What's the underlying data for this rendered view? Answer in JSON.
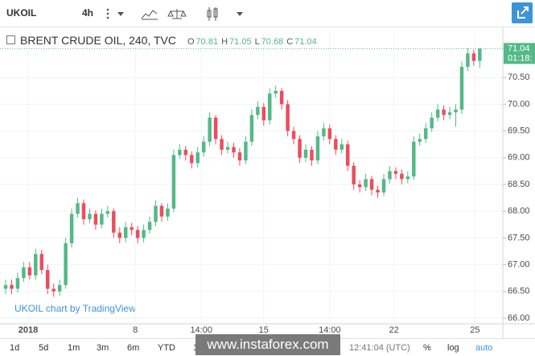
{
  "toolbar": {
    "symbol": "UKOIL",
    "interval": "4h"
  },
  "banner": "www.instaforex.com",
  "bottom_toolbar": {
    "ranges": [
      "1d",
      "5d",
      "1m",
      "3m",
      "6m",
      "YTD",
      "1y"
    ],
    "clock": "12:41:04 (UTC)",
    "options": [
      "%",
      "log",
      "auto"
    ]
  },
  "chart_data": {
    "type": "candlestick",
    "title": "BRENT CRUDE OIL, 240, TVC",
    "ohlc_labels": [
      {
        "label": "O",
        "value": 70.81
      },
      {
        "label": "H",
        "value": 71.05
      },
      {
        "label": "L",
        "value": 70.68
      },
      {
        "label": "C",
        "value": 71.04
      }
    ],
    "watermark": "UKOIL chart by TradingView",
    "up_color": "#53b987",
    "down_color": "#eb4d5c",
    "open": [
      66.55,
      66.62,
      66.55,
      66.75,
      66.95,
      66.8,
      67.2,
      66.9,
      66.55,
      66.5,
      66.62,
      67.4,
      67.95,
      68.15,
      67.85,
      67.95,
      67.75,
      67.95,
      68.0,
      67.6,
      67.5,
      67.7,
      67.65,
      67.5,
      67.65,
      67.8,
      68.1,
      67.9,
      68.05,
      69.05,
      69.15,
      69.05,
      68.9,
      69.1,
      69.3,
      69.75,
      69.35,
      69.15,
      69.2,
      69.1,
      68.95,
      69.3,
      69.8,
      69.95,
      69.7,
      70.2,
      70.25,
      70.0,
      69.5,
      69.35,
      69.0,
      69.15,
      68.95,
      69.4,
      69.55,
      69.35,
      69.15,
      69.25,
      68.85,
      68.5,
      68.45,
      68.6,
      68.4,
      68.35,
      68.6,
      68.75,
      68.7,
      68.6,
      68.65,
      69.3,
      69.35,
      69.55,
      69.75,
      69.9,
      69.8,
      69.85,
      69.9,
      70.7,
      70.95,
      70.81
    ],
    "high": [
      66.72,
      66.72,
      66.85,
      67.05,
      67.05,
      67.3,
      67.28,
      67.0,
      66.65,
      66.72,
      67.5,
      68.05,
      68.25,
      68.22,
      68.05,
      68.02,
      68.05,
      68.1,
      68.05,
      67.7,
      67.8,
      67.78,
      67.72,
      67.75,
      67.9,
      68.2,
      68.15,
      68.15,
      69.15,
      69.25,
      69.22,
      69.12,
      69.2,
      69.4,
      69.85,
      69.8,
      69.42,
      69.3,
      69.28,
      69.18,
      69.4,
      69.9,
      70.05,
      70.02,
      70.3,
      70.35,
      70.3,
      70.08,
      69.58,
      69.42,
      69.25,
      69.22,
      69.5,
      69.65,
      69.62,
      69.42,
      69.35,
      69.32,
      68.92,
      68.58,
      68.7,
      68.66,
      68.48,
      68.7,
      68.85,
      68.82,
      68.78,
      68.75,
      69.4,
      69.45,
      69.65,
      69.85,
      70.0,
      69.98,
      69.95,
      70.0,
      70.8,
      71.05,
      71.02,
      71.05
    ],
    "low": [
      66.45,
      66.45,
      66.48,
      66.68,
      66.72,
      66.72,
      66.82,
      66.45,
      66.4,
      66.42,
      66.55,
      67.32,
      67.88,
      67.75,
      67.78,
      67.65,
      67.68,
      67.88,
      67.5,
      67.4,
      67.42,
      67.55,
      67.4,
      67.42,
      67.58,
      67.72,
      67.8,
      67.82,
      67.98,
      68.98,
      68.95,
      68.8,
      68.82,
      69.02,
      69.22,
      69.25,
      69.05,
      69.08,
      69.0,
      68.85,
      68.88,
      69.22,
      69.72,
      69.6,
      69.62,
      70.12,
      69.9,
      69.4,
      69.25,
      68.9,
      68.92,
      68.85,
      68.88,
      69.32,
      69.25,
      69.05,
      69.08,
      68.75,
      68.4,
      68.35,
      68.38,
      68.3,
      68.25,
      68.28,
      68.52,
      68.6,
      68.5,
      68.52,
      68.58,
      69.22,
      69.28,
      69.48,
      69.68,
      69.7,
      69.72,
      69.58,
      69.82,
      70.62,
      70.72,
      70.68
    ],
    "close": [
      66.62,
      66.55,
      66.75,
      66.95,
      66.8,
      67.2,
      66.9,
      66.55,
      66.5,
      66.62,
      67.4,
      67.95,
      68.15,
      67.85,
      67.95,
      67.75,
      67.95,
      68.0,
      67.6,
      67.5,
      67.7,
      67.65,
      67.5,
      67.65,
      67.8,
      68.1,
      67.9,
      68.05,
      69.05,
      69.15,
      69.05,
      68.9,
      69.1,
      69.3,
      69.75,
      69.35,
      69.15,
      69.2,
      69.1,
      68.95,
      69.3,
      69.8,
      69.95,
      69.7,
      70.2,
      70.25,
      70.0,
      69.5,
      69.35,
      69.0,
      69.15,
      68.95,
      69.4,
      69.55,
      69.35,
      69.15,
      69.25,
      68.85,
      68.5,
      68.45,
      68.6,
      68.4,
      68.35,
      68.6,
      68.75,
      68.7,
      68.6,
      68.65,
      69.3,
      69.35,
      69.55,
      69.75,
      69.9,
      69.8,
      69.85,
      69.9,
      70.7,
      70.95,
      70.81,
      71.04
    ],
    "xlim": [
      -0.94,
      82.84
    ],
    "xticks": [
      {
        "value": 3.75,
        "label": "2018"
      },
      {
        "value": 21.6,
        "label": "8"
      },
      {
        "value": 32.6,
        "label": "14:00"
      },
      {
        "value": 43.0,
        "label": "15"
      },
      {
        "value": 54.0,
        "label": "14:00"
      },
      {
        "value": 64.7,
        "label": "22"
      },
      {
        "value": 78.2,
        "label": "25"
      }
    ],
    "ylim": [
      65.895,
      71.392
    ],
    "yticks": [
      {
        "value": 66,
        "label": "66.00"
      },
      {
        "value": 66.5,
        "label": "66.50"
      },
      {
        "value": 67,
        "label": "67.00"
      },
      {
        "value": 67.5,
        "label": "67.50"
      },
      {
        "value": 68,
        "label": "68.00"
      },
      {
        "value": 68.5,
        "label": "68.50"
      },
      {
        "value": 69,
        "label": "69.00"
      },
      {
        "value": 69.5,
        "label": "69.50"
      },
      {
        "value": 70,
        "label": "70.00"
      },
      {
        "value": 70.5,
        "label": "70.50"
      }
    ],
    "grid": true,
    "last_price": {
      "value": 71.04,
      "countdown": "01:18:"
    }
  }
}
